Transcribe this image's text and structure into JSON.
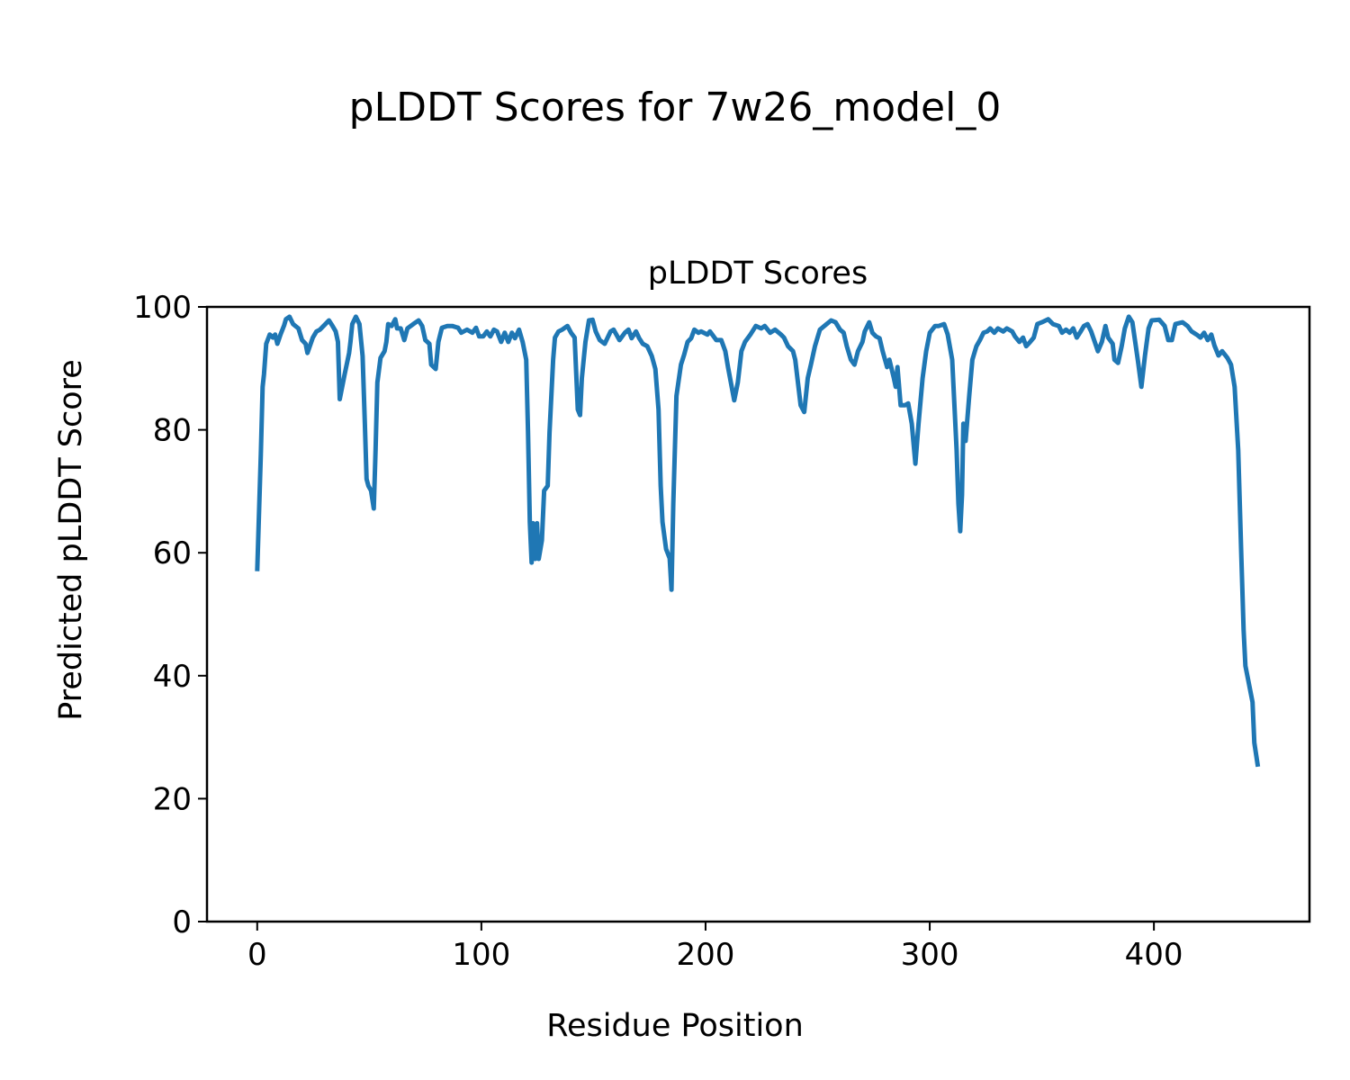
{
  "chart_data": {
    "type": "line",
    "title": "pLDDT Scores for 7w26_model_0",
    "subtitle": "pLDDT Scores",
    "xlabel": "Residue Position",
    "ylabel": "Predicted pLDDT Score",
    "xlim": [
      -22.4,
      469.4
    ],
    "ylim": [
      0,
      100
    ],
    "xticks": [
      "0",
      "100",
      "200",
      "300",
      "400"
    ],
    "yticks": [
      "0",
      "20",
      "40",
      "60",
      "80",
      "100"
    ],
    "grid": false,
    "color": "#1f77b4",
    "series": [
      {
        "name": "pLDDT",
        "x": [
          0,
          1.6,
          2.4,
          3,
          4,
          5.6,
          7,
          8,
          9,
          10.4,
          12,
          12.8,
          14.4,
          16,
          18.4,
          20,
          21.6,
          22.4,
          24.8,
          26.4,
          28,
          30.4,
          32,
          33.6,
          35,
          36,
          36.8,
          39,
          41,
          41.6,
          42.4,
          44,
          45.6,
          47,
          48,
          48.8,
          49.6,
          50.8,
          52,
          52.8,
          53.6,
          55,
          56.8,
          57.6,
          58.4,
          60,
          61.6,
          62.4,
          64,
          65.6,
          67,
          69.6,
          72,
          73.6,
          75,
          76.8,
          77.6,
          79.6,
          80.8,
          82.4,
          84.8,
          87,
          89.6,
          91,
          93.6,
          96,
          97.6,
          99,
          100.8,
          102.4,
          104,
          105.6,
          107,
          108.8,
          110.4,
          112,
          113.6,
          115,
          116.8,
          118.4,
          120,
          120.8,
          121.6,
          122.4,
          123,
          124,
          124.8,
          125.6,
          127,
          128,
          129.6,
          130.4,
          132,
          132.8,
          134.4,
          136,
          138.4,
          140,
          141.6,
          143,
          144,
          144.8,
          146.4,
          148,
          149.6,
          151,
          152.8,
          155,
          157.6,
          159,
          161.6,
          164,
          165.6,
          167,
          169,
          170.4,
          172,
          174,
          176,
          177.6,
          179,
          180,
          180.8,
          181.6,
          182.4,
          184,
          184.8,
          185.6,
          187,
          189,
          190.4,
          192,
          193.6,
          195,
          196.8,
          198,
          200.8,
          202,
          204.8,
          207,
          208.8,
          210,
          212.8,
          214.4,
          216,
          217.6,
          220,
          222.4,
          224.8,
          226.4,
          228.8,
          231,
          233.6,
          235,
          236.8,
          239,
          240,
          242.4,
          244,
          245.6,
          247,
          248.8,
          251,
          254,
          256,
          258,
          260,
          261.6,
          263,
          264.8,
          266.4,
          268,
          270,
          271,
          273,
          274.4,
          276,
          277.6,
          279,
          281,
          282,
          284,
          284.8,
          285.6,
          287,
          289,
          290.4,
          292,
          293.6,
          295,
          296.8,
          298.4,
          300,
          302.4,
          304,
          306.4,
          308,
          310,
          312,
          312.8,
          313.6,
          314.4,
          315,
          316,
          317.6,
          319,
          320.8,
          322.4,
          324,
          325.6,
          327,
          328.8,
          330.4,
          332.8,
          334.4,
          336.8,
          338,
          340,
          341.6,
          343,
          344.8,
          346.4,
          348,
          350,
          352.8,
          355,
          357.6,
          359,
          360.8,
          362.4,
          364,
          365.6,
          367,
          368.8,
          370.4,
          372,
          373.6,
          375,
          376.8,
          378.4,
          379.6,
          381.6,
          382.4,
          384,
          385.6,
          387,
          388.8,
          390.4,
          392.8,
          394.4,
          396,
          397.6,
          399,
          402.4,
          404.8,
          406.4,
          408,
          409.6,
          412.8,
          415,
          416.8,
          419,
          420.8,
          422.4,
          424,
          425.6,
          427,
          428.8,
          430.4,
          432.8,
          434.4,
          436,
          437.6,
          439,
          440,
          440.8,
          442.4,
          444,
          444.8,
          446.4
        ],
        "y": [
          57,
          76,
          87,
          89,
          94,
          95.5,
          95,
          95.5,
          94,
          95.5,
          97,
          98,
          98.4,
          97.2,
          96.5,
          94.6,
          94,
          92.5,
          95,
          96,
          96.3,
          97.2,
          97.8,
          96.9,
          96,
          94.3,
          85,
          89,
          92.5,
          94.3,
          97.2,
          98.4,
          97.2,
          92,
          81,
          72,
          70.9,
          70.1,
          67.2,
          76.7,
          87.7,
          91.7,
          92.8,
          94.3,
          97.2,
          96.9,
          98,
          96.5,
          96.5,
          94.6,
          96.5,
          97.2,
          97.8,
          96.9,
          94.6,
          94,
          90.6,
          89.9,
          94.3,
          96.6,
          96.9,
          96.9,
          96.6,
          95.8,
          96.3,
          95.8,
          96.6,
          95.2,
          95.2,
          96,
          95.2,
          96.3,
          96,
          94.3,
          95.8,
          94.3,
          95.8,
          94.9,
          96.3,
          94.3,
          91.4,
          79.6,
          65,
          58.4,
          64.8,
          59,
          64.8,
          59,
          62,
          70.1,
          70.9,
          79.6,
          91.4,
          95,
          96,
          96.3,
          96.9,
          95.8,
          95,
          83.3,
          82.4,
          88.4,
          94.3,
          97.8,
          97.9,
          96,
          94.6,
          94,
          96,
          96.3,
          94.6,
          95.8,
          96.3,
          94.9,
          96,
          94.9,
          94,
          93.6,
          92,
          89.9,
          83.3,
          70.9,
          65,
          62.8,
          60.6,
          59.1,
          54,
          67.9,
          85.5,
          90.6,
          92.2,
          94.3,
          94.9,
          96.3,
          95.8,
          96,
          95.5,
          96,
          94.6,
          94.6,
          92.8,
          90.2,
          84.8,
          87.7,
          92.8,
          94.3,
          95.5,
          96.9,
          96.5,
          96.9,
          95.8,
          96.3,
          95.5,
          95,
          93.6,
          92.8,
          91.4,
          84,
          82.9,
          88.4,
          90.6,
          93.6,
          96.3,
          97.2,
          97.8,
          97.5,
          96.3,
          95.8,
          93.6,
          91.4,
          90.6,
          92.8,
          94.3,
          96,
          97.5,
          95.8,
          95.2,
          94.9,
          92.8,
          90.2,
          91.4,
          88.4,
          87,
          90.2,
          84,
          84,
          84.3,
          81,
          74.5,
          81,
          88.4,
          92.8,
          95.8,
          96.9,
          96.9,
          97.2,
          95.5,
          91.4,
          76.7,
          68,
          63.5,
          69.4,
          81,
          78.2,
          85.5,
          91.4,
          93.6,
          94.6,
          95.8,
          96,
          96.5,
          95.8,
          96.5,
          96,
          96.5,
          96,
          95.2,
          94.3,
          95,
          93.6,
          94.3,
          95,
          97.2,
          97.5,
          98,
          97.2,
          96.9,
          95.8,
          96.3,
          95.8,
          96.5,
          95,
          95.8,
          96.9,
          97.2,
          96,
          94.3,
          92.8,
          94.3,
          96.9,
          95,
          94,
          91.4,
          90.9,
          93.6,
          96.5,
          98.4,
          97.5,
          91.4,
          87,
          92.1,
          96.5,
          97.8,
          97.9,
          96.9,
          94.6,
          94.6,
          97.2,
          97.5,
          96.9,
          96,
          95.5,
          95,
          95.8,
          94.6,
          95.5,
          93.7,
          92.1,
          92.8,
          91.7,
          90.6,
          87,
          76.7,
          59.2,
          47.4,
          41.6,
          38.7,
          35.7,
          29.1,
          25.2
        ]
      }
    ]
  }
}
